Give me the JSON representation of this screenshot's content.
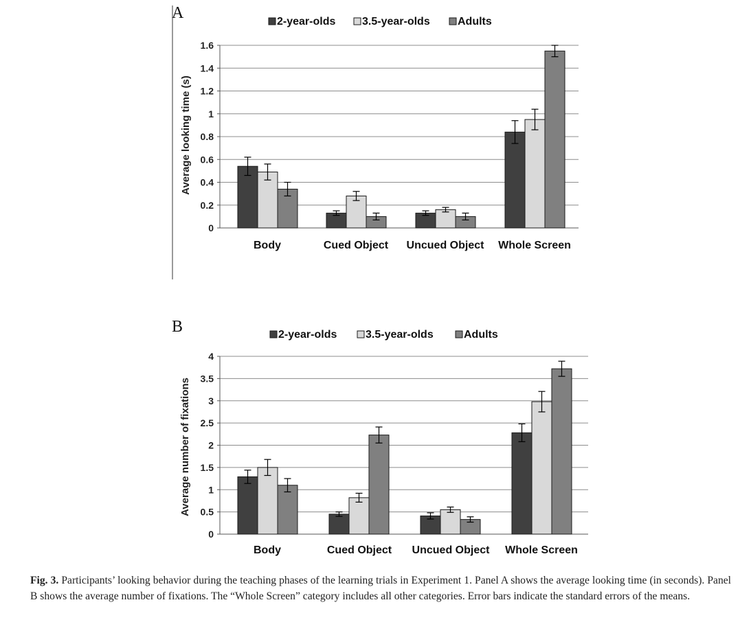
{
  "figure": {
    "caption_label": "Fig. 3.",
    "caption_text": "Participants’ looking behavior during the teaching phases of the learning trials in Experiment 1. Panel A shows the average looking time (in seconds). Panel B shows the average number of fixations. The “Whole Screen” category includes all other categories. Error bars indicate the standard errors of the means."
  },
  "chart_data": [
    {
      "panel": "A",
      "type": "bar",
      "ylabel": "Average looking time (s)",
      "ylim": [
        0,
        1.6
      ],
      "yticks": [
        {
          "v": 0,
          "label": "0"
        },
        {
          "v": 0.2,
          "label": "0.2"
        },
        {
          "v": 0.4,
          "label": "0.4"
        },
        {
          "v": 0.6,
          "label": "0.6"
        },
        {
          "v": 0.8,
          "label": "0.8"
        },
        {
          "v": 1,
          "label": "1"
        },
        {
          "v": 1.2,
          "label": "1.2"
        },
        {
          "v": 1.4,
          "label": "1.4"
        },
        {
          "v": 1.6,
          "label": "1.6"
        }
      ],
      "grid": true,
      "legend_position": "top",
      "categories": [
        "Body",
        "Cued Object",
        "Uncued Object",
        "Whole Screen"
      ],
      "series": [
        {
          "name": "2-year-olds",
          "color": "#404040",
          "values": [
            0.54,
            0.13,
            0.13,
            0.84
          ],
          "errors": [
            0.08,
            0.02,
            0.02,
            0.1
          ]
        },
        {
          "name": "3.5-year-olds",
          "color": "#d9d9d9",
          "values": [
            0.49,
            0.28,
            0.16,
            0.95
          ],
          "errors": [
            0.07,
            0.04,
            0.02,
            0.09
          ]
        },
        {
          "name": "Adults",
          "color": "#808080",
          "values": [
            0.34,
            0.1,
            0.1,
            1.55
          ],
          "errors": [
            0.06,
            0.03,
            0.03,
            0.05
          ]
        }
      ]
    },
    {
      "panel": "B",
      "type": "bar",
      "ylabel": "Average number of fixations",
      "ylim": [
        0,
        4
      ],
      "yticks": [
        {
          "v": 0,
          "label": "0"
        },
        {
          "v": 0.5,
          "label": "0.5"
        },
        {
          "v": 1,
          "label": "1"
        },
        {
          "v": 1.5,
          "label": "1.5"
        },
        {
          "v": 2,
          "label": "2"
        },
        {
          "v": 2.5,
          "label": "2.5"
        },
        {
          "v": 3,
          "label": "3"
        },
        {
          "v": 3.5,
          "label": "3.5"
        },
        {
          "v": 4,
          "label": "4"
        }
      ],
      "grid": true,
      "legend_position": "top",
      "categories": [
        "Body",
        "Cued Object",
        "Uncued Object",
        "Whole Screen"
      ],
      "series": [
        {
          "name": "2-year-olds",
          "color": "#404040",
          "values": [
            1.29,
            0.45,
            0.41,
            2.28
          ],
          "errors": [
            0.15,
            0.05,
            0.07,
            0.2
          ]
        },
        {
          "name": "3.5-year-olds",
          "color": "#d9d9d9",
          "values": [
            1.5,
            0.82,
            0.55,
            2.98
          ],
          "errors": [
            0.18,
            0.1,
            0.06,
            0.23
          ]
        },
        {
          "name": "Adults",
          "color": "#808080",
          "values": [
            1.1,
            2.23,
            0.33,
            3.72
          ],
          "errors": [
            0.15,
            0.18,
            0.06,
            0.17
          ]
        }
      ]
    }
  ]
}
